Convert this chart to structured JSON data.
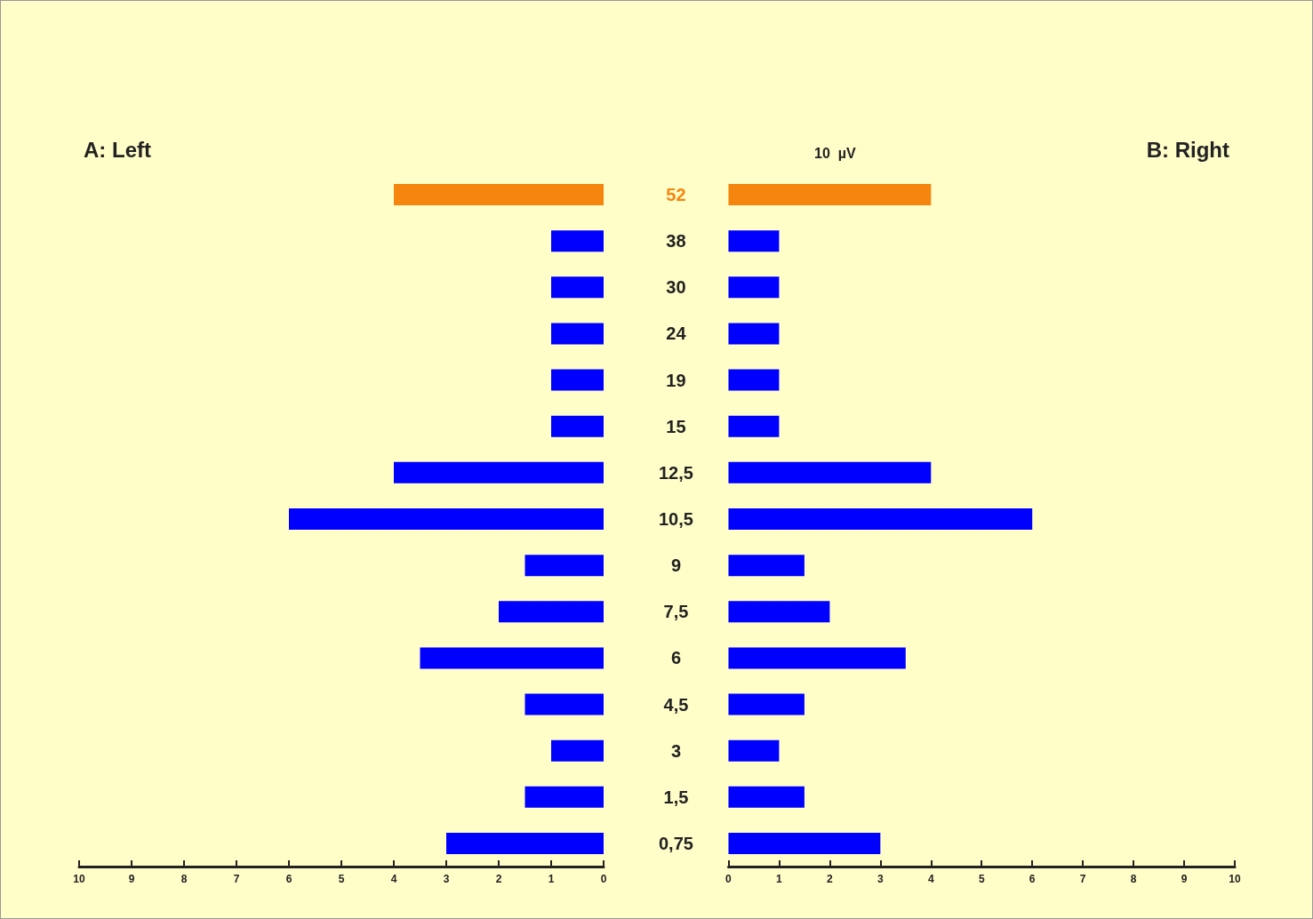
{
  "chart_data": [
    {
      "type": "bar",
      "orientation": "horizontal",
      "title": "A: Left",
      "categories": [
        "52",
        "38",
        "30",
        "24",
        "19",
        "15",
        "12,5",
        "10,5",
        "9",
        "7,5",
        "6",
        "4,5",
        "3",
        "1,5",
        "0,75"
      ],
      "values": [
        4,
        1,
        1,
        1,
        1,
        1,
        4,
        6,
        1.5,
        2,
        3.5,
        1.5,
        1,
        1.5,
        3
      ],
      "colors": [
        "#f5850f",
        "#0000ff",
        "#0000ff",
        "#0000ff",
        "#0000ff",
        "#0000ff",
        "#0000ff",
        "#0000ff",
        "#0000ff",
        "#0000ff",
        "#0000ff",
        "#0000ff",
        "#0000ff",
        "#0000ff",
        "#0000ff"
      ],
      "xlim": [
        10,
        0
      ],
      "xticks": [
        0,
        1,
        2,
        3,
        4,
        5,
        6,
        7,
        8,
        9,
        10
      ],
      "tick_labels": "x"
    },
    {
      "type": "bar",
      "orientation": "horizontal",
      "title": "B: Right",
      "annotations": [
        "10  µV"
      ],
      "categories": [
        "52",
        "38",
        "30",
        "24",
        "19",
        "15",
        "12,5",
        "10,5",
        "9",
        "7,5",
        "6",
        "4,5",
        "3",
        "1,5",
        "0,75"
      ],
      "values": [
        4,
        1,
        1,
        1,
        1,
        1,
        4,
        6,
        1.5,
        2,
        3.5,
        1.5,
        1,
        1.5,
        3
      ],
      "colors": [
        "#f5850f",
        "#0000ff",
        "#0000ff",
        "#0000ff",
        "#0000ff",
        "#0000ff",
        "#0000ff",
        "#0000ff",
        "#0000ff",
        "#0000ff",
        "#0000ff",
        "#0000ff",
        "#0000ff",
        "#0000ff",
        "#0000ff"
      ],
      "xlim": [
        0,
        10
      ],
      "xticks": [
        0,
        1,
        2,
        3,
        4,
        5,
        6,
        7,
        8,
        9,
        10
      ]
    }
  ]
}
